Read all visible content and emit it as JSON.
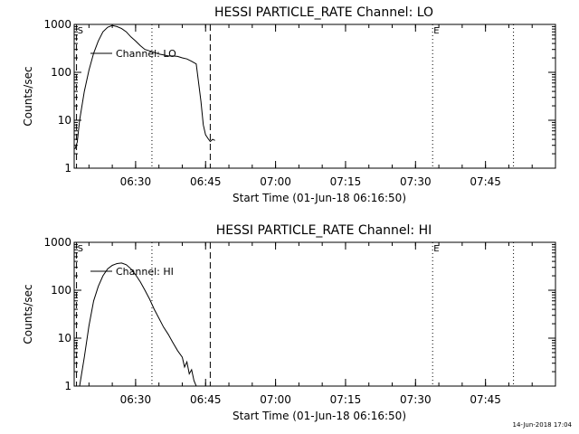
{
  "footer_timestamp": "14-Jun-2018 17:04",
  "chart_data": [
    {
      "type": "line",
      "title": "HESSI PARTICLE_RATE Channel: LO",
      "xlabel": "Start Time (01-Jun-18 06:16:50)",
      "ylabel": "Counts/sec",
      "y_scale": "log",
      "ylim": [
        1,
        1000
      ],
      "y_ticks": [
        {
          "value": 1,
          "label": "1"
        },
        {
          "value": 10,
          "label": "10"
        },
        {
          "value": 100,
          "label": "100"
        },
        {
          "value": 1000,
          "label": "1000"
        }
      ],
      "xlim": [
        "06:16:50",
        "08:00:00"
      ],
      "x_ticks": [
        {
          "value": "06:30",
          "label": "06:30"
        },
        {
          "value": "06:45",
          "label": "06:45"
        },
        {
          "value": "07:00",
          "label": "07:00"
        },
        {
          "value": "07:15",
          "label": "07:15"
        },
        {
          "value": "07:30",
          "label": "07:30"
        },
        {
          "value": "07:45",
          "label": "07:45"
        }
      ],
      "legend": {
        "placement": "top-left",
        "label": "Channel: LO"
      },
      "series": [
        {
          "name": "Channel: LO",
          "x": [
            "06:17:00",
            "06:17:30",
            "06:18:00",
            "06:19:00",
            "06:20:00",
            "06:21:00",
            "06:22:00",
            "06:23:00",
            "06:24:00",
            "06:25:00",
            "06:26:00",
            "06:27:00",
            "06:28:00",
            "06:29:00",
            "06:30:00",
            "06:31:00",
            "06:32:00",
            "06:33:00",
            "06:34:00",
            "06:35:00",
            "06:36:00",
            "06:37:00",
            "06:38:00",
            "06:39:00",
            "06:40:00",
            "06:41:00",
            "06:42:00",
            "06:43:00",
            "06:44:00",
            "06:44:30",
            "06:45:00",
            "06:45:30",
            "06:46:00",
            "06:46:30",
            "06:47:00"
          ],
          "y": [
            2.5,
            3.5,
            10,
            40,
            110,
            250,
            450,
            700,
            870,
            950,
            900,
            820,
            700,
            550,
            450,
            360,
            300,
            280,
            260,
            240,
            230,
            220,
            220,
            215,
            200,
            190,
            170,
            150,
            25,
            8,
            5,
            4.2,
            3.6,
            4.0,
            3.8
          ]
        }
      ],
      "markers": [
        {
          "x": "06:17:20",
          "style": "dashed",
          "label": "S"
        },
        {
          "x": "06:33:30",
          "style": "dotted",
          "label": ""
        },
        {
          "x": "06:46:00",
          "style": "dashed",
          "label": ""
        },
        {
          "x": "07:33:40",
          "style": "dotted",
          "label": "E"
        },
        {
          "x": "07:51:00",
          "style": "dotted",
          "label": ""
        }
      ]
    },
    {
      "type": "line",
      "title": "HESSI PARTICLE_RATE Channel: HI",
      "xlabel": "Start Time (01-Jun-18 06:16:50)",
      "ylabel": "Counts/sec",
      "y_scale": "log",
      "ylim": [
        1,
        1000
      ],
      "y_ticks": [
        {
          "value": 1,
          "label": "1"
        },
        {
          "value": 10,
          "label": "10"
        },
        {
          "value": 100,
          "label": "100"
        },
        {
          "value": 1000,
          "label": "1000"
        }
      ],
      "xlim": [
        "06:16:50",
        "08:00:00"
      ],
      "x_ticks": [
        {
          "value": "06:30",
          "label": "06:30"
        },
        {
          "value": "06:45",
          "label": "06:45"
        },
        {
          "value": "07:00",
          "label": "07:00"
        },
        {
          "value": "07:15",
          "label": "07:15"
        },
        {
          "value": "07:30",
          "label": "07:30"
        },
        {
          "value": "07:45",
          "label": "07:45"
        }
      ],
      "legend": {
        "placement": "top-left",
        "label": "Channel: HI"
      },
      "series": [
        {
          "name": "Channel: HI",
          "x": [
            "06:18:00",
            "06:19:00",
            "06:20:00",
            "06:21:00",
            "06:22:00",
            "06:23:00",
            "06:24:00",
            "06:25:00",
            "06:26:00",
            "06:27:00",
            "06:28:00",
            "06:29:00",
            "06:30:00",
            "06:31:00",
            "06:32:00",
            "06:33:00",
            "06:34:00",
            "06:35:00",
            "06:36:00",
            "06:37:00",
            "06:38:00",
            "06:39:00",
            "06:40:00",
            "06:40:30",
            "06:41:00",
            "06:41:30",
            "06:42:00",
            "06:42:30",
            "06:43:00"
          ],
          "y": [
            1,
            4,
            18,
            60,
            120,
            200,
            280,
            330,
            360,
            370,
            340,
            280,
            210,
            150,
            100,
            65,
            40,
            26,
            17,
            12,
            8,
            5.5,
            4,
            2.5,
            3.2,
            1.8,
            2.2,
            1.3,
            1
          ]
        }
      ],
      "markers": [
        {
          "x": "06:17:20",
          "style": "dashed",
          "label": "S"
        },
        {
          "x": "06:33:30",
          "style": "dotted",
          "label": ""
        },
        {
          "x": "06:46:00",
          "style": "dashed",
          "label": ""
        },
        {
          "x": "07:33:40",
          "style": "dotted",
          "label": "E"
        },
        {
          "x": "07:51:00",
          "style": "dotted",
          "label": ""
        }
      ]
    }
  ]
}
